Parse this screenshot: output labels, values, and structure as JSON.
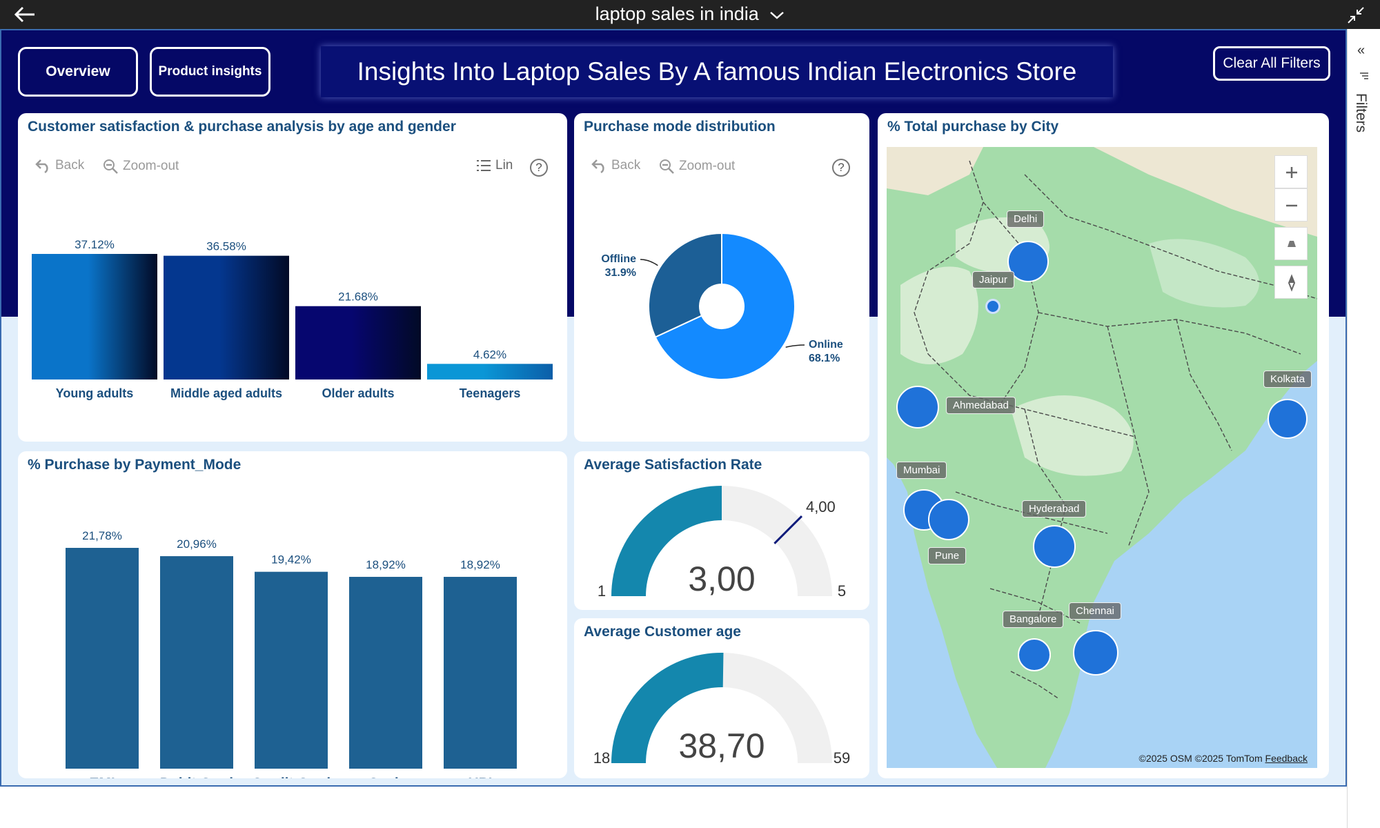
{
  "topbar": {
    "title": "laptop sales in india"
  },
  "nav": {
    "overview": "Overview",
    "product_insights": "Product insights",
    "clear_filters": "Clear All Filters"
  },
  "banner": {
    "title": "Insights Into Laptop Sales By A famous Indian Electronics Store"
  },
  "filters_rail": {
    "label": "Filters"
  },
  "age_card": {
    "title": "Customer satisfaction & purchase analysis by age and gender",
    "toolbar": {
      "back": "Back",
      "zoom_out": "Zoom-out",
      "scale": "Lin",
      "help": "?"
    }
  },
  "purchase_mode_card": {
    "title": "Purchase mode distribution",
    "toolbar": {
      "back": "Back",
      "zoom_out": "Zoom-out",
      "help": "?"
    }
  },
  "payment_card": {
    "title": "% Purchase by Payment_Mode"
  },
  "satisfaction_card": {
    "title": "Average Satisfaction Rate",
    "value": "3,00",
    "min": "1",
    "max": "5",
    "target": "4,00"
  },
  "age_gauge_card": {
    "title": "Average Customer age",
    "value": "38,70",
    "min": "18",
    "max": "59"
  },
  "map_card": {
    "title": "% Total purchase by City",
    "attribution": "©2025 OSM  ©2025 TomTom",
    "feedback": "Feedback",
    "cities": [
      "Delhi",
      "Jaipur",
      "Ahmedabad",
      "Kolkata",
      "Mumbai",
      "Pune",
      "Hyderabad",
      "Bangalore",
      "Chennai"
    ]
  },
  "chart_data": [
    {
      "type": "bar",
      "title": "Customer satisfaction & purchase analysis by age and gender",
      "categories": [
        "Young adults",
        "Middle aged adults",
        "Older adults",
        "Teenagers"
      ],
      "values": [
        37.12,
        36.58,
        21.68,
        4.62
      ],
      "value_labels": [
        "37.12%",
        "36.58%",
        "21.68%",
        "4.62%"
      ],
      "colors": [
        "#0a74c9",
        "#04378f",
        "#06066f",
        "#0a96d6"
      ]
    },
    {
      "type": "pie",
      "title": "Purchase mode distribution",
      "categories": [
        "Online",
        "Offline"
      ],
      "values": [
        68.1,
        31.9
      ],
      "value_labels": [
        "68.1%",
        "31.9%"
      ],
      "colors": [
        "#138aff",
        "#1c5f96"
      ]
    },
    {
      "type": "bar",
      "title": "% Purchase by Payment_Mode",
      "categories": [
        "EMI",
        "Debit Card",
        "Credit Card",
        "Cash",
        "UPI"
      ],
      "values": [
        21.78,
        20.96,
        19.42,
        18.92,
        18.92
      ],
      "value_labels": [
        "21,78%",
        "20,96%",
        "19,42%",
        "18,92%",
        "18,92%"
      ],
      "color": "#1e6192"
    },
    {
      "type": "gauge",
      "title": "Average Satisfaction Rate",
      "value": 3.0,
      "min": 1,
      "max": 5,
      "target": 4.0,
      "color": "#1487ad"
    },
    {
      "type": "gauge",
      "title": "Average Customer age",
      "value": 38.7,
      "min": 18,
      "max": 59,
      "color": "#1487ad"
    }
  ]
}
